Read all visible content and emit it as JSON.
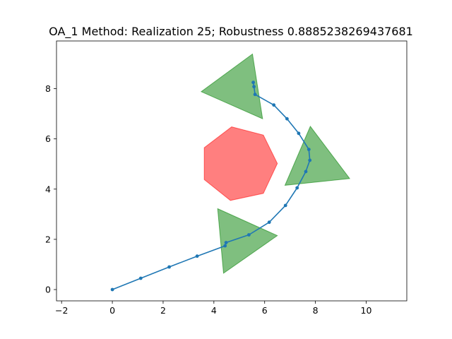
{
  "chart_data": {
    "type": "line",
    "title": "OA_1 Method: Realization 25; Robustness 0.8885238269437681",
    "xlabel": "",
    "ylabel": "",
    "xlim": [
      -2.2,
      11.6
    ],
    "ylim": [
      -0.45,
      9.9
    ],
    "xticks": [
      -2,
      0,
      2,
      4,
      6,
      8,
      10
    ],
    "yticks": [
      0,
      2,
      4,
      6,
      8
    ],
    "xtick_labels": [
      "−2",
      "0",
      "2",
      "4",
      "6",
      "8",
      "10"
    ],
    "ytick_labels": [
      "0",
      "2",
      "4",
      "6",
      "8"
    ],
    "grid": false,
    "series": [
      {
        "color": "#1f77b4",
        "x": [
          0.0,
          1.12,
          2.24,
          3.34,
          4.44,
          4.48,
          5.38,
          6.18,
          6.82,
          7.28,
          7.62,
          7.78,
          7.74,
          7.34,
          6.88,
          6.36,
          5.62,
          5.58,
          5.55
        ],
        "y": [
          0.0,
          0.45,
          0.9,
          1.33,
          1.74,
          1.87,
          2.18,
          2.68,
          3.35,
          4.05,
          4.7,
          5.15,
          5.58,
          6.22,
          6.8,
          7.35,
          7.77,
          8.08,
          8.25
        ]
      }
    ],
    "polygons": [
      {
        "color": "#ff0000",
        "points": [
          [
            4.7,
            6.48
          ],
          [
            5.95,
            6.15
          ],
          [
            6.5,
            5.02
          ],
          [
            5.95,
            3.83
          ],
          [
            4.65,
            3.55
          ],
          [
            3.62,
            4.38
          ],
          [
            3.62,
            5.65
          ]
        ]
      },
      {
        "color": "#008000",
        "points": [
          [
            3.5,
            7.88
          ],
          [
            5.52,
            9.38
          ],
          [
            5.92,
            6.8
          ]
        ]
      },
      {
        "color": "#008000",
        "points": [
          [
            7.8,
            6.5
          ],
          [
            9.35,
            4.42
          ],
          [
            6.8,
            4.15
          ]
        ]
      },
      {
        "color": "#008000",
        "points": [
          [
            4.15,
            3.22
          ],
          [
            6.5,
            2.15
          ],
          [
            4.38,
            0.65
          ]
        ]
      }
    ]
  }
}
